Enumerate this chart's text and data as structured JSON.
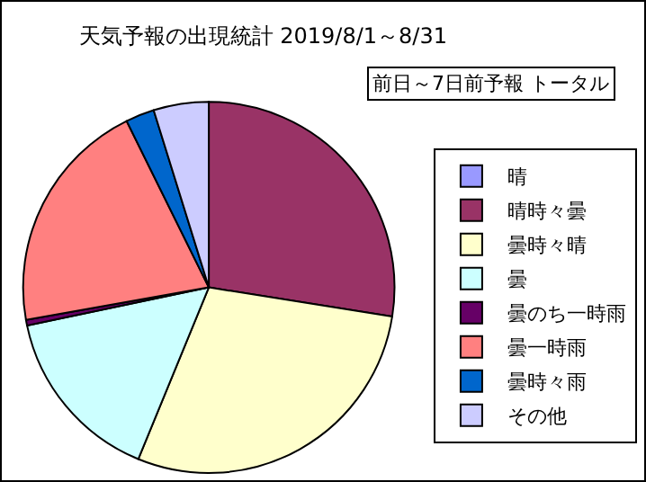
{
  "chart_data": {
    "type": "pie",
    "title": "天気予報の出現統計 2019/8/1～8/31",
    "subtitle": "前日～7日前予報 トータル",
    "categories": [
      "晴",
      "晴時々曇",
      "曇時々晴",
      "曇",
      "曇のち一時雨",
      "曇一時雨",
      "曇時々雨",
      "その他"
    ],
    "values": [
      0,
      27.5,
      28.7,
      15.5,
      0.5,
      20.5,
      2.5,
      4.8
    ],
    "colors": [
      "#9999ff",
      "#993366",
      "#ffffcc",
      "#ccffff",
      "#660066",
      "#ff8080",
      "#0066cc",
      "#ccccff"
    ],
    "legend": "right"
  }
}
